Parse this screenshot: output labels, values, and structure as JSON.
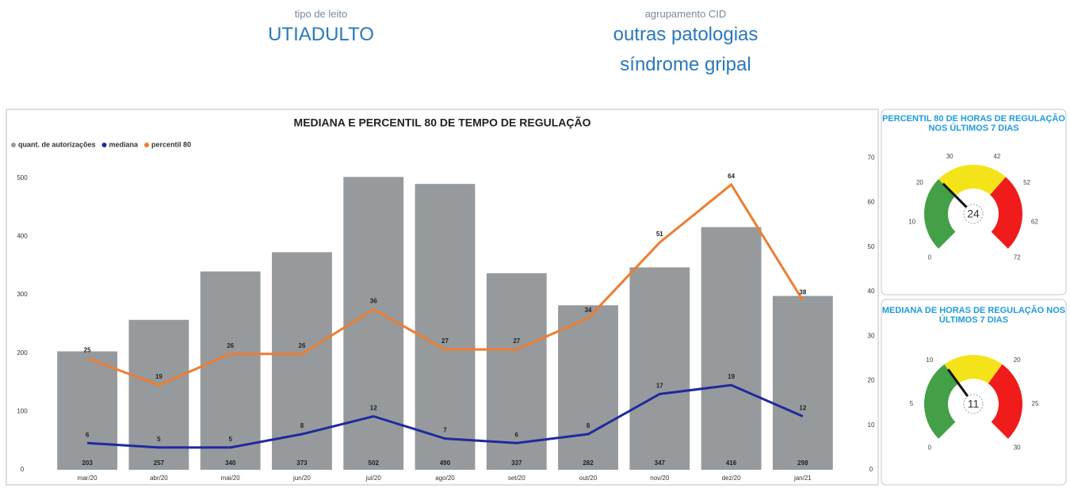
{
  "filters": [
    {
      "label": "tipo de leito",
      "values": [
        "UTIADULTO"
      ]
    },
    {
      "label": "agrupamento CID",
      "values": [
        "outras patologias",
        "síndrome gripal"
      ]
    }
  ],
  "chart_data": [
    {
      "type": "combo",
      "title": "MEDIANA E PERCENTIL 80 DE TEMPO DE REGULAÇÃO",
      "categories": [
        "mar/20",
        "abr/20",
        "mai/20",
        "jun/20",
        "jul/20",
        "ago/20",
        "set/20",
        "out/20",
        "nov/20",
        "dez/20",
        "jan/21"
      ],
      "series": [
        {
          "name": "quant. de autorizações",
          "type": "bar",
          "color": "#969a9d",
          "values": [
            203,
            257,
            340,
            373,
            502,
            490,
            337,
            282,
            347,
            416,
            298
          ]
        },
        {
          "name": "mediana",
          "type": "line",
          "axis": "y2",
          "color": "#1f2a9c",
          "values": [
            6,
            5,
            5,
            8,
            12,
            7,
            6,
            8,
            17,
            19,
            12
          ]
        },
        {
          "name": "percentil 80",
          "type": "line",
          "axis": "y2",
          "color": "#ed7d31",
          "values": [
            25,
            19,
            26,
            26,
            36,
            27,
            27,
            34,
            51,
            64,
            38
          ]
        }
      ],
      "ylim": [
        0,
        550
      ],
      "yticks": [
        0,
        100,
        200,
        300,
        400,
        500
      ],
      "y2lim": [
        0,
        72
      ],
      "y2ticks": [
        0,
        10,
        20,
        30,
        40,
        50,
        60,
        70
      ]
    },
    {
      "type": "gauge",
      "title": "PERCENTIL 80 DE HORAS DE REGULAÇÃO NOS ÚLTIMOS 7 DIAS",
      "value": 24,
      "range": [
        0,
        72
      ],
      "ticks": [
        0,
        10,
        20,
        30,
        42,
        52,
        62,
        72
      ],
      "bands": [
        {
          "from": 0,
          "to": 24,
          "color": "#43a047"
        },
        {
          "from": 24,
          "to": 47,
          "color": "#f5e31a"
        },
        {
          "from": 47,
          "to": 72,
          "color": "#f01b1b"
        }
      ]
    },
    {
      "type": "gauge",
      "title": "MEDIANA DE HORAS DE REGULAÇÃO NOS ÚLTIMOS 7 DIAS",
      "value": 11,
      "range": [
        0,
        30
      ],
      "ticks": [
        0,
        5,
        10,
        20,
        25,
        30
      ],
      "bands": [
        {
          "from": 0,
          "to": 11,
          "color": "#43a047"
        },
        {
          "from": 11,
          "to": 19,
          "color": "#f5e31a"
        },
        {
          "from": 19,
          "to": 30,
          "color": "#f01b1b"
        }
      ]
    }
  ]
}
